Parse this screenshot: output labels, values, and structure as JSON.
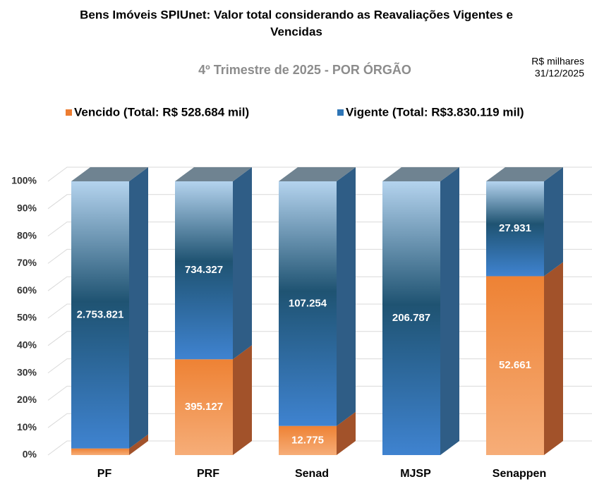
{
  "chart_data": {
    "type": "stacked_bar_100",
    "title": "Bens Imóveis SPIUnet: Valor total considerando as Reavaliações Vigentes e",
    "title_line2": "Vencidas",
    "subtitle": "4º Trimestre de 2025 - POR ÓRGÃO",
    "annotations": [
      "R$ milhares",
      "31/12/2025"
    ],
    "categories": [
      "PF",
      "PRF",
      "Senad",
      "MJSP",
      "Senappen"
    ],
    "series": [
      {
        "name": "Vencido (Total: R$ 528.684 mil)",
        "color": "#ed7d31",
        "values": [
          68121,
          395127,
          12775,
          0,
          52661
        ],
        "value_labels": [
          null,
          "395.127",
          "12.775",
          null,
          "52.661"
        ]
      },
      {
        "name": "Vigente (Total: R$3.830.119 mil)",
        "color": "#2e75b6",
        "values": [
          2753821,
          734327,
          107254,
          206787,
          27931
        ],
        "value_labels": [
          "2.753.821",
          "734.327",
          "107.254",
          "206.787",
          "27.931"
        ]
      }
    ],
    "ylim": [
      0,
      100
    ],
    "yticks": [
      {
        "value": 0,
        "label": "0%"
      },
      {
        "value": 10,
        "label": "10%"
      },
      {
        "value": 20,
        "label": "20%"
      },
      {
        "value": 30,
        "label": "30%"
      },
      {
        "value": 40,
        "label": "40%"
      },
      {
        "value": 50,
        "label": "50%"
      },
      {
        "value": 60,
        "label": "60%"
      },
      {
        "value": 70,
        "label": "70%"
      },
      {
        "value": 80,
        "label": "80%"
      },
      {
        "value": 90,
        "label": "90%"
      },
      {
        "value": 100,
        "label": "100%"
      }
    ],
    "grid": true
  }
}
